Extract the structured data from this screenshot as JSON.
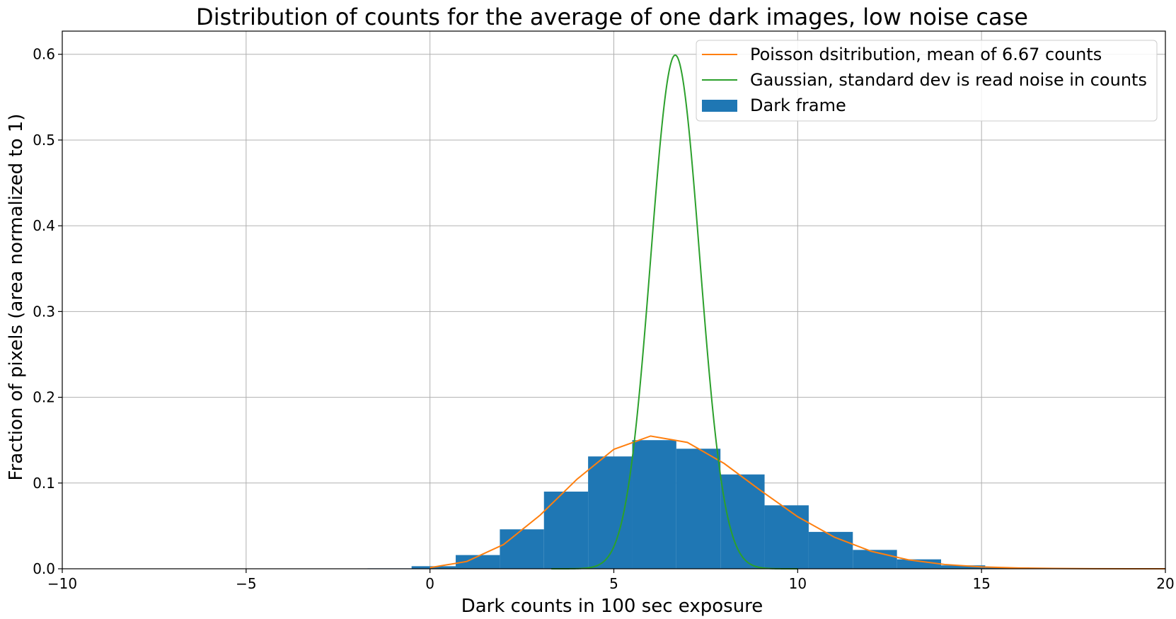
{
  "chart_data": {
    "type": "bar",
    "title": "Distribution of counts for the average of one dark images, low noise case",
    "xlabel": "Dark counts in 100 sec exposure",
    "ylabel": "Fraction of pixels (area normalized to 1)",
    "xlim": [
      -10,
      20
    ],
    "ylim": [
      0,
      0.627
    ],
    "x_ticks": [
      -10,
      -5,
      0,
      5,
      10,
      15,
      20
    ],
    "x_tick_labels": [
      "−10",
      "−5",
      "0",
      "5",
      "10",
      "15",
      "20"
    ],
    "y_ticks": [
      0.0,
      0.1,
      0.2,
      0.3,
      0.4,
      0.5,
      0.6
    ],
    "y_tick_labels": [
      "0.0",
      "0.1",
      "0.2",
      "0.3",
      "0.4",
      "0.5",
      "0.6"
    ],
    "grid": true,
    "legend_position": "top-right",
    "histogram": {
      "name": "Dark frame",
      "color": "#1f77b4",
      "bins": [
        {
          "x0": -1.7,
          "x1": -0.5,
          "value": 0.0005
        },
        {
          "x0": -0.5,
          "x1": 0.7,
          "value": 0.003
        },
        {
          "x0": 0.7,
          "x1": 1.9,
          "value": 0.016
        },
        {
          "x0": 1.9,
          "x1": 3.1,
          "value": 0.046
        },
        {
          "x0": 3.1,
          "x1": 4.3,
          "value": 0.09
        },
        {
          "x0": 4.3,
          "x1": 5.5,
          "value": 0.131
        },
        {
          "x0": 5.5,
          "x1": 6.7,
          "value": 0.15
        },
        {
          "x0": 6.7,
          "x1": 7.9,
          "value": 0.14
        },
        {
          "x0": 7.9,
          "x1": 9.1,
          "value": 0.11
        },
        {
          "x0": 9.1,
          "x1": 10.3,
          "value": 0.074
        },
        {
          "x0": 10.3,
          "x1": 11.5,
          "value": 0.043
        },
        {
          "x0": 11.5,
          "x1": 12.7,
          "value": 0.022
        },
        {
          "x0": 12.7,
          "x1": 13.9,
          "value": 0.011
        },
        {
          "x0": 13.9,
          "x1": 15.1,
          "value": 0.004
        },
        {
          "x0": 15.1,
          "x1": 16.3,
          "value": 0.0015
        },
        {
          "x0": 16.3,
          "x1": 17.5,
          "value": 0.0005
        }
      ]
    },
    "series": [
      {
        "name": "Poisson dsitribution, mean of  6.67 counts",
        "type": "line",
        "color": "#ff7f0e",
        "x": [
          0,
          1,
          2,
          3,
          4,
          5,
          6,
          7,
          8,
          9,
          10,
          11,
          12,
          13,
          14,
          15,
          16,
          17,
          18,
          19,
          20
        ],
        "y": [
          0.0013,
          0.0085,
          0.0282,
          0.0627,
          0.1045,
          0.1393,
          0.1548,
          0.1474,
          0.1228,
          0.091,
          0.0607,
          0.0368,
          0.0204,
          0.0105,
          0.005,
          0.0022,
          0.0009,
          0.0004,
          0.0001,
          0.0,
          0.0
        ]
      },
      {
        "name": "Gaussian, standard dev is read noise in counts",
        "type": "line",
        "color": "#2ca02c",
        "mean": 6.67,
        "std": 0.666,
        "x_range": [
          3.3,
          10.0
        ],
        "peak": 0.599
      }
    ]
  }
}
